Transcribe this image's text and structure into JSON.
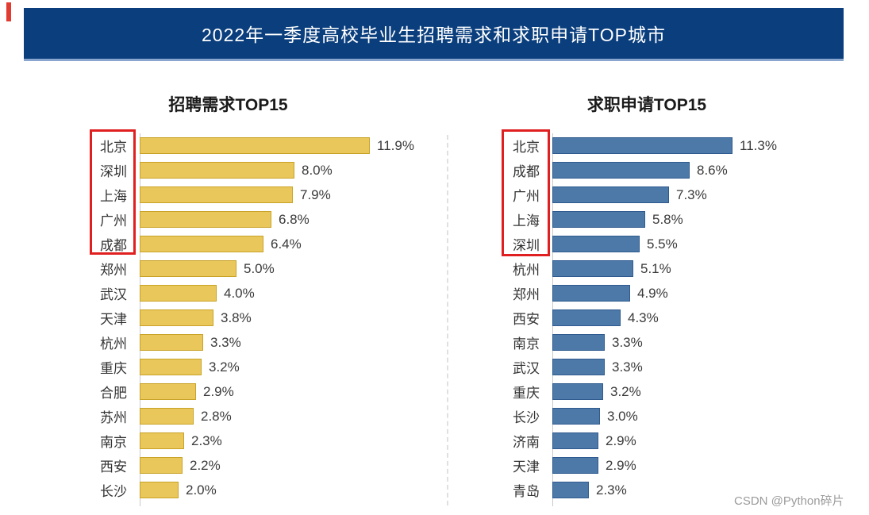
{
  "page": {
    "banner_title": "2022年一季度高校毕业生招聘需求和求职申请TOP城市",
    "watermark": "CSDN @Python碎片"
  },
  "colors": {
    "banner_bg": "#0a3e7d",
    "banner_underline": "#8ba6ce",
    "demand_bar_fill": "#e9c75a",
    "demand_bar_border": "#c9a227",
    "apply_bar_fill": "#4d79a8",
    "apply_bar_border": "#2e5a8f",
    "highlight_box_red": "#e02020",
    "watermark_gray": "#9b9b9b"
  },
  "chart_data": [
    {
      "type": "bar",
      "orientation": "horizontal",
      "title": "招聘需求TOP15",
      "ylabel": "",
      "xlabel": "",
      "unit": "%",
      "xlim": [
        0,
        12
      ],
      "grid": false,
      "legend_position": "none",
      "highlight_top_n": 5,
      "categories": [
        "北京",
        "深圳",
        "上海",
        "广州",
        "成都",
        "郑州",
        "武汉",
        "天津",
        "杭州",
        "重庆",
        "合肥",
        "苏州",
        "南京",
        "西安",
        "长沙"
      ],
      "values": [
        11.9,
        8.0,
        7.9,
        6.8,
        6.4,
        5.0,
        4.0,
        3.8,
        3.3,
        3.2,
        2.9,
        2.8,
        2.3,
        2.2,
        2.0
      ],
      "value_labels": [
        "11.9%",
        "8.0%",
        "7.9%",
        "6.8%",
        "6.4%",
        "5.0%",
        "4.0%",
        "3.8%",
        "3.3%",
        "3.2%",
        "2.9%",
        "2.8%",
        "2.3%",
        "2.2%",
        "2.0%"
      ]
    },
    {
      "type": "bar",
      "orientation": "horizontal",
      "title": "求职申请TOP15",
      "ylabel": "",
      "xlabel": "",
      "unit": "%",
      "xlim": [
        0,
        12
      ],
      "grid": false,
      "legend_position": "none",
      "highlight_top_n": 5,
      "categories": [
        "北京",
        "成都",
        "广州",
        "上海",
        "深圳",
        "杭州",
        "郑州",
        "西安",
        "南京",
        "武汉",
        "重庆",
        "长沙",
        "济南",
        "天津",
        "青岛"
      ],
      "values": [
        11.3,
        8.6,
        7.3,
        5.8,
        5.5,
        5.1,
        4.9,
        4.3,
        3.3,
        3.3,
        3.2,
        3.0,
        2.9,
        2.9,
        2.3
      ],
      "value_labels": [
        "11.3%",
        "8.6%",
        "7.3%",
        "5.8%",
        "5.5%",
        "5.1%",
        "4.9%",
        "4.3%",
        "3.3%",
        "3.3%",
        "3.2%",
        "3.0%",
        "2.9%",
        "2.9%",
        "2.3%"
      ]
    }
  ]
}
